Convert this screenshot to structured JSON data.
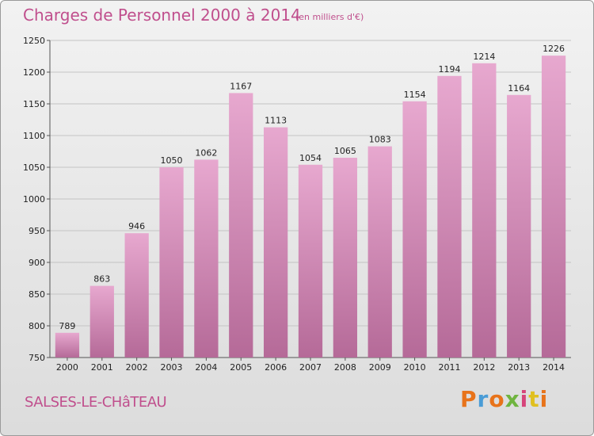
{
  "header": {
    "title": "Charges de Personnel 2000 à 2014",
    "subtitle": "(en milliers d'€)"
  },
  "footer": {
    "city": "SALSES-LE-CHâTEAU",
    "logo": "Proxiti",
    "logo_colors": [
      "#e8731a",
      "#4a9cd6",
      "#e8731a",
      "#6fb43f",
      "#d6447a",
      "#e0c020",
      "#e8731a"
    ]
  },
  "colors": {
    "bar_top": "#e7a8cf",
    "bar_bottom": "#b56a98",
    "accent": "#c04f8d"
  },
  "chart_data": {
    "type": "bar",
    "title": "Charges de Personnel 2000 à 2014",
    "subtitle": "(en milliers d'€)",
    "xlabel": "",
    "ylabel": "",
    "categories": [
      "2000",
      "2001",
      "2002",
      "2003",
      "2004",
      "2005",
      "2006",
      "2007",
      "2008",
      "2009",
      "2010",
      "2011",
      "2012",
      "2013",
      "2014"
    ],
    "values": [
      789,
      863,
      946,
      1050,
      1062,
      1167,
      1113,
      1054,
      1065,
      1083,
      1154,
      1194,
      1214,
      1164,
      1226
    ],
    "ylim": [
      750,
      1250
    ],
    "yticks": [
      750,
      800,
      850,
      900,
      950,
      1000,
      1050,
      1100,
      1150,
      1200,
      1250
    ],
    "grid": true,
    "legend": "none"
  }
}
